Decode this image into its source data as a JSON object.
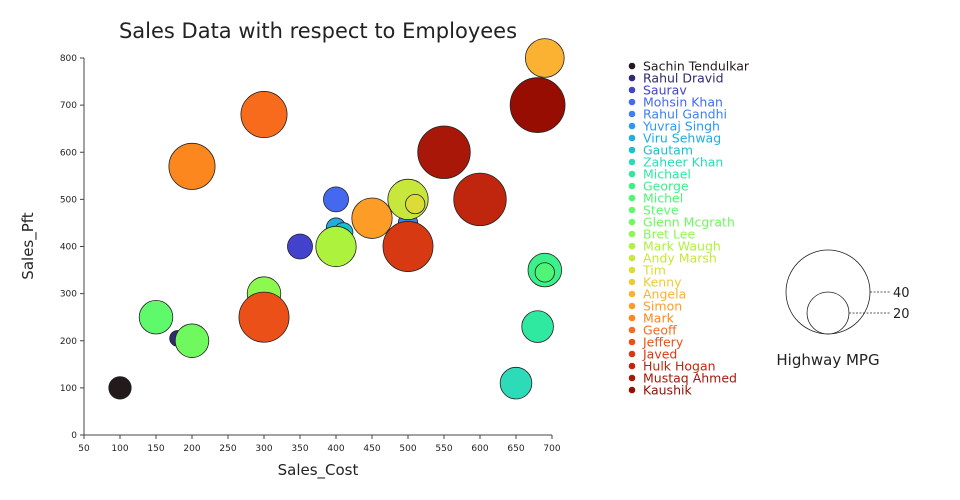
{
  "chart_data": {
    "type": "scatter",
    "title": "Sales Data with respect to Employees",
    "xlabel": "Sales_Cost",
    "ylabel": "Sales_Pft",
    "xlim": [
      50,
      700
    ],
    "ylim": [
      0,
      800
    ],
    "xticks": [
      50,
      100,
      150,
      200,
      250,
      300,
      350,
      400,
      450,
      500,
      550,
      600,
      650,
      700
    ],
    "yticks": [
      0,
      100,
      200,
      300,
      400,
      500,
      600,
      700,
      800
    ],
    "series": [
      {
        "name": "Sachin Tendulkar",
        "x": 100,
        "y": 100,
        "size": 4,
        "color": "#231a1c"
      },
      {
        "name": "Rahul Dravid",
        "x": 180,
        "y": 205,
        "size": 2,
        "color": "#2f2b6e"
      },
      {
        "name": "Saurav",
        "x": 350,
        "y": 400,
        "size": 5,
        "color": "#4242cc"
      },
      {
        "name": "Mohsin Khan",
        "x": 400,
        "y": 500,
        "size": 5,
        "color": "#4569ee"
      },
      {
        "name": "Rahul Gandhi",
        "x": 500,
        "y": 450,
        "size": 3,
        "color": "#3d82f5"
      },
      {
        "name": "Yuvraj Singh",
        "x": 500,
        "y": 420,
        "size": 3,
        "color": "#2f97f1"
      },
      {
        "name": "Viru Sehwag",
        "x": 400,
        "y": 440,
        "size": 3,
        "color": "#20aee0"
      },
      {
        "name": "Gautam",
        "x": 410,
        "y": 430,
        "size": 3,
        "color": "#18c2cc"
      },
      {
        "name": "Zaheer Khan",
        "x": 650,
        "y": 110,
        "size": 8,
        "color": "#2ddbb9"
      },
      {
        "name": "Michael",
        "x": 680,
        "y": 230,
        "size": 8,
        "color": "#30e9a1"
      },
      {
        "name": "George",
        "x": 690,
        "y": 350,
        "size": 9,
        "color": "#3cf08a"
      },
      {
        "name": "Michel",
        "x": 690,
        "y": 345,
        "size": 3,
        "color": "#4ef576"
      },
      {
        "name": "Steve",
        "x": 150,
        "y": 250,
        "size": 9,
        "color": "#5ffa6c"
      },
      {
        "name": "Glenn Mcgrath",
        "x": 200,
        "y": 200,
        "size": 9,
        "color": "#6ff95e"
      },
      {
        "name": "Bret Lee",
        "x": 300,
        "y": 300,
        "size": 9,
        "color": "#8bf94d"
      },
      {
        "name": "Mark Waugh",
        "x": 400,
        "y": 400,
        "size": 13,
        "color": "#adf23d"
      },
      {
        "name": "Andy Marsh",
        "x": 500,
        "y": 500,
        "size": 13,
        "color": "#c7e73c"
      },
      {
        "name": "Tim",
        "x": 510,
        "y": 490,
        "size": 3,
        "color": "#dbdc38"
      },
      {
        "name": "Kenny",
        "x": 690,
        "y": 800,
        "size": 3,
        "color": "#eeca38"
      },
      {
        "name": "Angela",
        "x": 690,
        "y": 800,
        "size": 12,
        "color": "#fbb232"
      },
      {
        "name": "Simon",
        "x": 450,
        "y": 460,
        "size": 13,
        "color": "#fd9d28"
      },
      {
        "name": "Mark",
        "x": 200,
        "y": 570,
        "size": 17,
        "color": "#fc871f"
      },
      {
        "name": "Geoff",
        "x": 300,
        "y": 680,
        "size": 17,
        "color": "#f96b1c"
      },
      {
        "name": "Jeffery",
        "x": 300,
        "y": 250,
        "size": 20,
        "color": "#ea5017"
      },
      {
        "name": "Javed",
        "x": 500,
        "y": 400,
        "size": 20,
        "color": "#d73a12"
      },
      {
        "name": "Hulk Hogan",
        "x": 600,
        "y": 500,
        "size": 22,
        "color": "#c0260d"
      },
      {
        "name": "Mustaq Ahmed",
        "x": 550,
        "y": 600,
        "size": 22,
        "color": "#a81708"
      },
      {
        "name": "Kaushik",
        "x": 680,
        "y": 700,
        "size": 24,
        "color": "#970d02"
      }
    ],
    "size_legend": {
      "title": "Highway MPG",
      "values": [
        40,
        20
      ]
    }
  }
}
